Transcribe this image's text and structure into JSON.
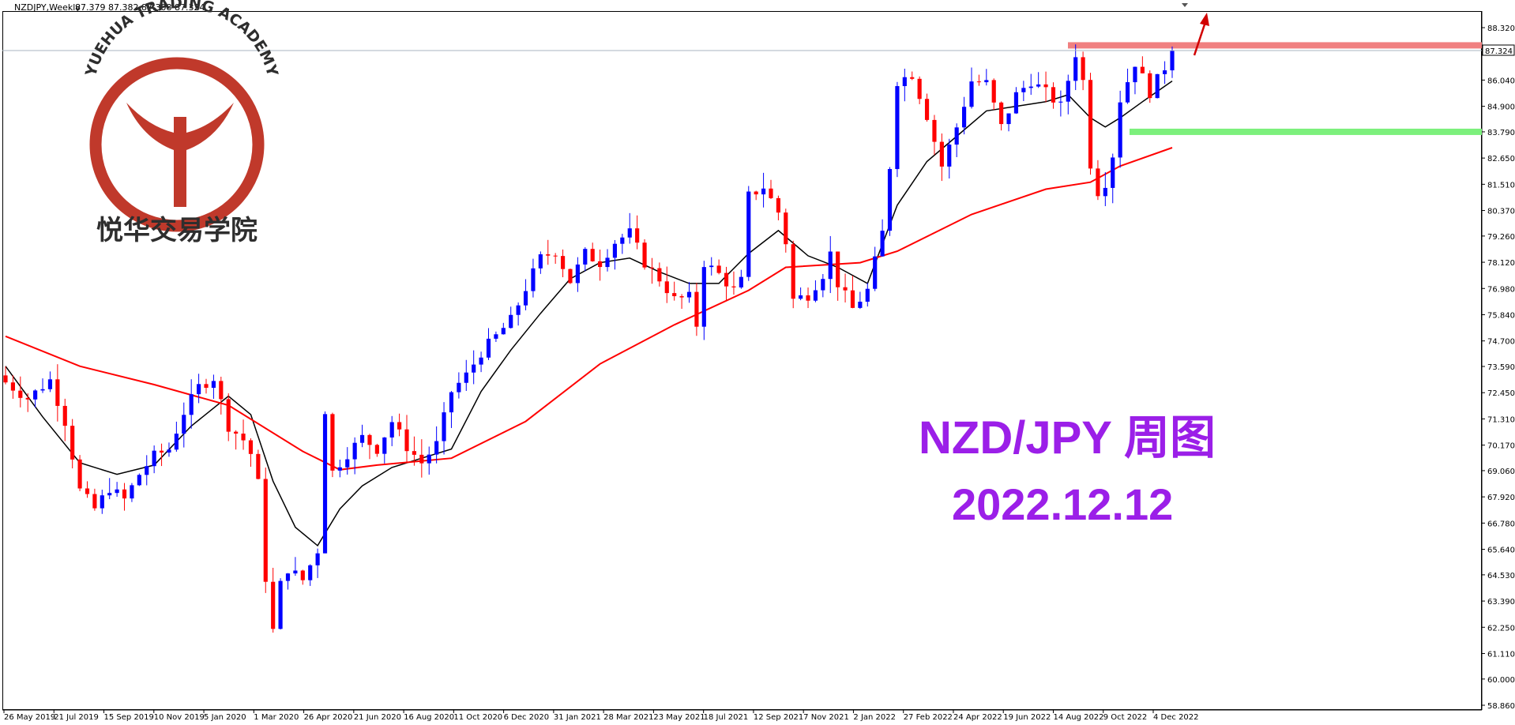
{
  "header": {
    "symbol_timeframe": "NZDJPY,Weekly",
    "ohlc": "87.379 87.382 87.308 87.324"
  },
  "logo": {
    "arc_text": "YUEHUA TRADING ACADEMY",
    "cn_text": "悦华交易学院"
  },
  "overlay": {
    "line1": "NZD/JPY 周图",
    "line2": "2022.12.12"
  },
  "colors": {
    "bull": "#0000ff",
    "bear": "#ff0000",
    "ma_fast": "#000000",
    "ma_slow": "#ff0000",
    "resistance": "#f08080",
    "support": "#7cf07c",
    "overlay_text": "#9b1fe8",
    "logo_red": "#c0392b"
  },
  "chart_data": {
    "type": "candlestick",
    "symbol": "NZDJPY",
    "timeframe": "Weekly",
    "ylim": [
      58.86,
      88.32
    ],
    "price_axis_ticks": [
      88.32,
      86.04,
      84.9,
      83.79,
      82.65,
      81.51,
      80.37,
      79.26,
      78.12,
      76.98,
      75.84,
      74.7,
      73.59,
      72.45,
      71.31,
      70.17,
      69.06,
      67.92,
      66.78,
      65.64,
      64.53,
      63.39,
      62.25,
      61.11,
      60.0,
      58.86
    ],
    "current_price": 87.324,
    "date_axis_labels": [
      "26 May 2019",
      "21 Jul 2019",
      "15 Sep 2019",
      "10 Nov 2019",
      "5 Jan 2020",
      "1 Mar 2020",
      "26 Apr 2020",
      "21 Jun 2020",
      "16 Aug 2020",
      "11 Oct 2020",
      "6 Dec 2020",
      "31 Jan 2021",
      "28 Mar 2021",
      "23 May 2021",
      "18 Jul 2021",
      "12 Sep 2021",
      "7 Nov 2021",
      "2 Jan 2022",
      "27 Feb 2022",
      "24 Apr 2022",
      "19 Jun 2022",
      "14 Aug 2022",
      "9 Oct 2022",
      "4 Dec 2022"
    ],
    "close_path": [
      [
        0,
        72.9
      ],
      [
        3,
        72.2
      ],
      [
        6,
        73.0
      ],
      [
        8,
        71.2
      ],
      [
        10,
        68.2
      ],
      [
        12,
        67.4
      ],
      [
        14,
        68.3
      ],
      [
        16,
        67.8
      ],
      [
        18,
        68.9
      ],
      [
        20,
        69.7
      ],
      [
        22,
        70.0
      ],
      [
        24,
        71.6
      ],
      [
        26,
        72.7
      ],
      [
        28,
        73.1
      ],
      [
        30,
        71.0
      ],
      [
        32,
        70.4
      ],
      [
        33,
        69.8
      ],
      [
        34,
        68.5
      ],
      [
        35,
        64.4
      ],
      [
        36,
        62.1
      ],
      [
        37,
        64.1
      ],
      [
        38,
        64.8
      ],
      [
        40,
        64.3
      ],
      [
        42,
        65.6
      ],
      [
        43,
        71.7
      ],
      [
        44,
        69.0
      ],
      [
        46,
        69.8
      ],
      [
        48,
        70.5
      ],
      [
        50,
        70.0
      ],
      [
        52,
        71.2
      ],
      [
        54,
        70.1
      ],
      [
        56,
        69.4
      ],
      [
        58,
        70.2
      ],
      [
        60,
        72.5
      ],
      [
        62,
        73.2
      ],
      [
        64,
        74.2
      ],
      [
        66,
        74.9
      ],
      [
        68,
        75.6
      ],
      [
        70,
        77.0
      ],
      [
        72,
        78.3
      ],
      [
        74,
        78.6
      ],
      [
        76,
        77.3
      ],
      [
        78,
        78.5
      ],
      [
        80,
        78.1
      ],
      [
        82,
        79.0
      ],
      [
        84,
        79.4
      ],
      [
        86,
        78.1
      ],
      [
        88,
        77.4
      ],
      [
        90,
        76.5
      ],
      [
        92,
        76.6
      ],
      [
        93,
        75.4
      ],
      [
        94,
        78.1
      ],
      [
        96,
        77.6
      ],
      [
        98,
        76.9
      ],
      [
        99,
        77.3
      ],
      [
        100,
        81.0
      ],
      [
        102,
        81.4
      ],
      [
        104,
        80.3
      ],
      [
        105,
        79.0
      ],
      [
        106,
        76.5
      ],
      [
        108,
        76.7
      ],
      [
        110,
        77.6
      ],
      [
        111,
        78.5
      ],
      [
        112,
        77.2
      ],
      [
        114,
        76.1
      ],
      [
        116,
        76.9
      ],
      [
        118,
        79.4
      ],
      [
        119,
        82.3
      ],
      [
        120,
        86.0
      ],
      [
        122,
        86.3
      ],
      [
        124,
        84.5
      ],
      [
        126,
        82.3
      ],
      [
        128,
        84.0
      ],
      [
        130,
        86.0
      ],
      [
        132,
        85.9
      ],
      [
        134,
        84.0
      ],
      [
        136,
        85.4
      ],
      [
        138,
        86.0
      ],
      [
        140,
        85.5
      ],
      [
        142,
        84.9
      ],
      [
        144,
        87.2
      ],
      [
        145,
        86.0
      ],
      [
        146,
        82.4
      ],
      [
        147,
        81.2
      ],
      [
        148,
        81.6
      ],
      [
        149,
        82.8
      ],
      [
        150,
        85.2
      ],
      [
        152,
        86.8
      ],
      [
        154,
        85.5
      ],
      [
        156,
        86.6
      ],
      [
        157,
        87.32
      ]
    ],
    "series": [
      {
        "name": "MA fast",
        "color": "#000000",
        "points": [
          [
            0,
            73.6
          ],
          [
            5,
            71.4
          ],
          [
            10,
            69.4
          ],
          [
            15,
            68.9
          ],
          [
            20,
            69.3
          ],
          [
            25,
            71.0
          ],
          [
            30,
            72.3
          ],
          [
            33,
            71.5
          ],
          [
            36,
            68.6
          ],
          [
            39,
            66.6
          ],
          [
            42,
            65.8
          ],
          [
            45,
            67.4
          ],
          [
            48,
            68.4
          ],
          [
            52,
            69.2
          ],
          [
            56,
            69.6
          ],
          [
            60,
            70.0
          ],
          [
            64,
            72.5
          ],
          [
            68,
            74.3
          ],
          [
            72,
            75.9
          ],
          [
            76,
            77.4
          ],
          [
            80,
            78.1
          ],
          [
            84,
            78.3
          ],
          [
            88,
            77.7
          ],
          [
            92,
            77.2
          ],
          [
            96,
            77.2
          ],
          [
            100,
            78.5
          ],
          [
            104,
            79.5
          ],
          [
            108,
            78.4
          ],
          [
            112,
            77.9
          ],
          [
            116,
            77.2
          ],
          [
            120,
            80.6
          ],
          [
            124,
            82.5
          ],
          [
            128,
            83.6
          ],
          [
            132,
            84.7
          ],
          [
            136,
            84.9
          ],
          [
            140,
            85.1
          ],
          [
            143,
            85.4
          ],
          [
            146,
            84.4
          ],
          [
            148,
            84.0
          ],
          [
            150,
            84.4
          ],
          [
            153,
            85.1
          ],
          [
            157,
            86.0
          ]
        ]
      },
      {
        "name": "MA slow",
        "color": "#ff0000",
        "points": [
          [
            0,
            74.9
          ],
          [
            10,
            73.6
          ],
          [
            20,
            72.8
          ],
          [
            30,
            71.9
          ],
          [
            40,
            69.9
          ],
          [
            45,
            69.1
          ],
          [
            50,
            69.3
          ],
          [
            60,
            69.6
          ],
          [
            70,
            71.2
          ],
          [
            80,
            73.7
          ],
          [
            90,
            75.4
          ],
          [
            100,
            76.9
          ],
          [
            105,
            77.9
          ],
          [
            115,
            78.1
          ],
          [
            120,
            78.6
          ],
          [
            130,
            80.2
          ],
          [
            140,
            81.3
          ],
          [
            146,
            81.6
          ],
          [
            150,
            82.3
          ],
          [
            157,
            83.1
          ]
        ]
      }
    ],
    "levels": [
      {
        "name": "resistance",
        "value": 87.55
      },
      {
        "name": "support",
        "value": 83.79
      }
    ]
  }
}
